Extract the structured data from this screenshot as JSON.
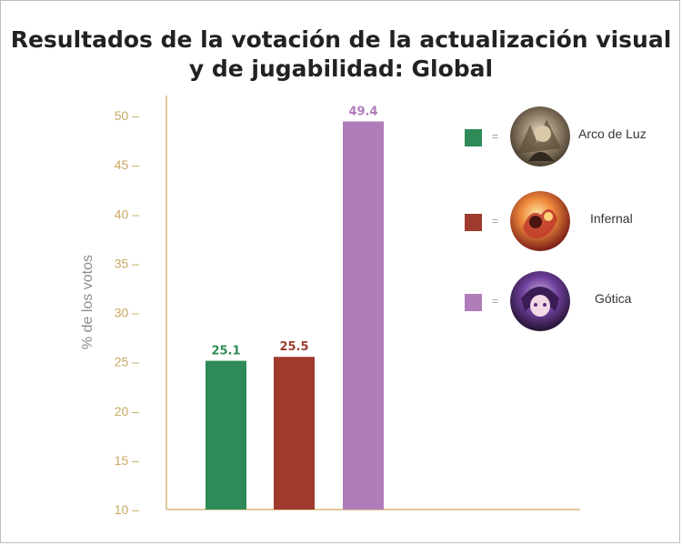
{
  "chart_data": {
    "type": "bar",
    "title": "Resultados de la votación de la actualización visual y de jugabilidad: Global",
    "title_lines": [
      "Resultados de la votación de la actualización visual",
      "y de jugabilidad: Global"
    ],
    "ylabel": "% de los votos",
    "xlabel": "",
    "ylim": [
      10,
      50
    ],
    "yticks": [
      10,
      15,
      20,
      25,
      30,
      35,
      40,
      45,
      50
    ],
    "grid": false,
    "legend_position": "right",
    "categories": [
      "Arco de Luz",
      "Infernal",
      "Gótica"
    ],
    "values": [
      25.1,
      25.5,
      49.4
    ],
    "value_labels": [
      "25.1",
      "25.5",
      "49.4"
    ],
    "colors": [
      "#2e8b57",
      "#9e3b2e",
      "#b07cb9"
    ]
  },
  "legend": {
    "eq_sign": "=",
    "items": [
      {
        "name": "Arco de Luz",
        "color": "#2e8b57",
        "icon": "arco-de-luz-skin-portrait-icon"
      },
      {
        "name": "Infernal",
        "color": "#9e3b2e",
        "icon": "infernal-skin-portrait-icon"
      },
      {
        "name": "Gótica",
        "color": "#b07cb9",
        "icon": "gotica-skin-portrait-icon"
      }
    ]
  },
  "colors": {
    "axis": "#d4b679",
    "tick_text": "#c9a863",
    "ylabel": "#8c8c8c",
    "title": "#222222"
  }
}
